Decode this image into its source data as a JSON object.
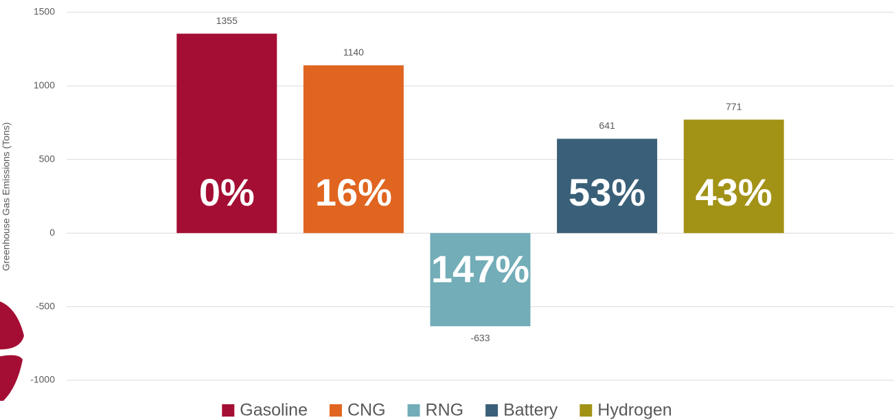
{
  "chart_data": {
    "type": "bar",
    "ylabel": "Greenhouse Gas Emissions (Tons)",
    "categories": [
      "Gasoline",
      "CNG",
      "RNG",
      "Battery",
      "Hydrogen"
    ],
    "values": [
      1355,
      1140,
      -633,
      641,
      771
    ],
    "colors": [
      "#a50e34",
      "#e06520",
      "#72adb8",
      "#3a6079",
      "#a29317"
    ],
    "annotations": [
      "0%",
      "16%",
      "147%",
      "53%",
      "43%"
    ],
    "ylim": [
      -1000,
      1500
    ],
    "yticks": [
      -1000,
      -500,
      0,
      500,
      1000,
      1500
    ],
    "grid": true,
    "legend": "bottom"
  }
}
